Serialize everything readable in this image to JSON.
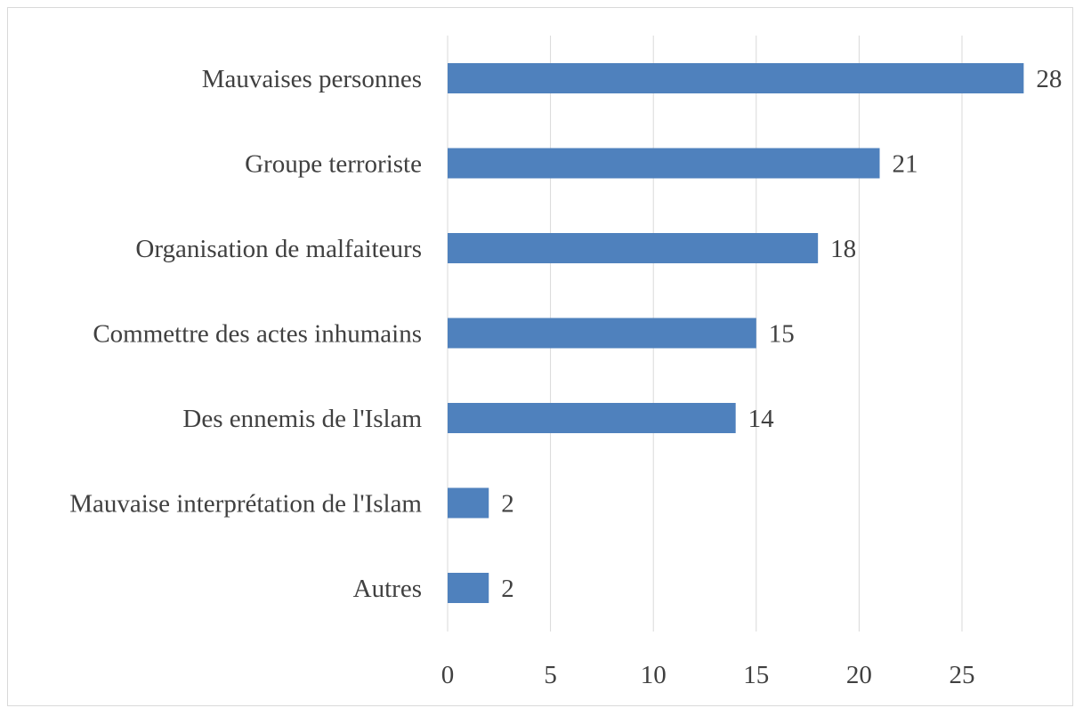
{
  "chart_data": {
    "type": "bar",
    "orientation": "horizontal",
    "categories": [
      "Mauvaises personnes",
      "Groupe terroriste",
      "Organisation de malfaiteurs",
      "Commettre des actes inhumains",
      "Des ennemis de l'Islam",
      "Mauvaise interprétation de l'Islam",
      "Autres"
    ],
    "values": [
      28,
      21,
      18,
      15,
      14,
      2,
      2
    ],
    "data_labels": [
      "28",
      "21",
      "18",
      "15",
      "14",
      "2",
      "2"
    ],
    "xticks": [
      0,
      5,
      10,
      15,
      20,
      25
    ],
    "xtick_labels": [
      "0",
      "5",
      "10",
      "15",
      "20",
      "25"
    ],
    "xlim": [
      0,
      30
    ],
    "grid": true,
    "bar_color": "#4f81bd",
    "title": "",
    "xlabel": "",
    "ylabel": ""
  }
}
